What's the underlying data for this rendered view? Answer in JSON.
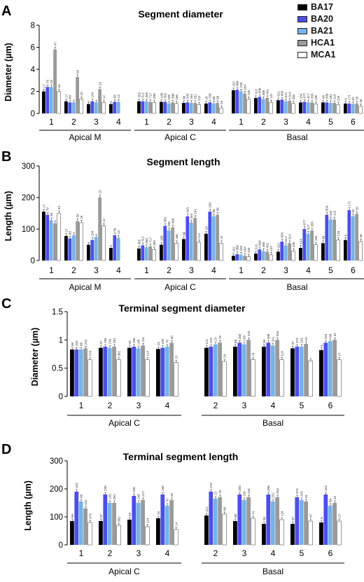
{
  "legend": {
    "series": [
      {
        "name": "BA17",
        "color": "#000000"
      },
      {
        "name": "BA20",
        "color": "#4d4dea"
      },
      {
        "name": "BA21",
        "color": "#76b2ea"
      },
      {
        "name": "HCA1",
        "color": "#9a9a9a"
      },
      {
        "name": "MCA1",
        "color": "#ffffff"
      }
    ]
  },
  "chart_data": [
    {
      "type": "bar",
      "panel_letter": "A",
      "title": "Segment diameter",
      "ylabel": "Diameter (µm)",
      "ylim": [
        0,
        8
      ],
      "yticks": [
        0,
        2,
        4,
        6,
        8
      ],
      "series_names": [
        "BA17",
        "BA20",
        "BA21",
        "HCA1",
        "MCA1"
      ],
      "groups": [
        {
          "label": "Apical M",
          "categories": [
            {
              "x": "1",
              "values": [
                2.0,
                2.4,
                2.4,
                5.8,
                2.0
              ],
              "n": [
                "17",
                "79",
                "33",
                "47",
                "44"
              ]
            },
            {
              "x": "2",
              "values": [
                1.1,
                1.0,
                1.0,
                3.3,
                1.3
              ],
              "n": [
                "27",
                "89",
                "",
                "50",
                "23"
              ]
            },
            {
              "x": "3",
              "values": [
                0.85,
                1.1,
                1.0,
                2.2,
                1.0
              ],
              "n": [
                "",
                "104",
                "",
                "23",
                "12"
              ]
            },
            {
              "x": "4",
              "values": [
                0.85,
                1.05,
                1.05,
                null,
                null
              ],
              "n": [
                "",
                "58",
                "13",
                "",
                ""
              ]
            }
          ]
        },
        {
          "label": "Apical C",
          "categories": [
            {
              "x": "1",
              "values": [
                1.1,
                1.1,
                1.1,
                1.05,
                1.0
              ],
              "n": [
                "355",
                "512",
                "300",
                "717",
                "399"
              ]
            },
            {
              "x": "2",
              "values": [
                1.05,
                1.05,
                0.9,
                1.0,
                0.9
              ],
              "n": [
                "188",
                "362",
                "208",
                "386",
                "186"
              ]
            },
            {
              "x": "3",
              "values": [
                0.95,
                1.0,
                0.95,
                0.95,
                0.8
              ],
              "n": [
                "86",
                "343",
                "204",
                "281",
                "122"
              ]
            },
            {
              "x": "4",
              "values": [
                0.9,
                1.0,
                0.9,
                0.95,
                0.5
              ],
              "n": [
                "29",
                "158",
                "85",
                "58",
                "15"
              ]
            }
          ]
        },
        {
          "label": "Basal",
          "categories": [
            {
              "x": "1",
              "values": [
                2.1,
                2.15,
                2.0,
                1.8,
                1.3
              ],
              "n": [
                "152",
                "366",
                "230",
                "284",
                "100"
              ]
            },
            {
              "x": "2",
              "values": [
                1.4,
                1.5,
                1.3,
                1.4,
                1.0
              ],
              "n": [
                "313",
                "606",
                "366",
                "431",
                "137"
              ]
            },
            {
              "x": "3",
              "values": [
                1.2,
                1.25,
                1.1,
                1.15,
                0.9
              ],
              "n": [
                "322",
                "909",
                "612",
                "913",
                "208"
              ]
            },
            {
              "x": "4",
              "values": [
                1.0,
                1.05,
                1.0,
                1.0,
                0.85
              ],
              "n": [
                "154",
                "677",
                "417",
                "355",
                "195"
              ]
            },
            {
              "x": "5",
              "values": [
                1.0,
                1.0,
                0.95,
                0.95,
                0.8
              ],
              "n": [
                "48",
                "509",
                "292",
                "119",
                "126"
              ]
            },
            {
              "x": "6",
              "values": [
                0.9,
                0.9,
                0.85,
                0.9,
                0.65
              ],
              "n": [
                "6",
                "171",
                "82",
                "35",
                "49"
              ]
            }
          ]
        }
      ]
    },
    {
      "type": "bar",
      "panel_letter": "B",
      "title": "Segment length",
      "ylabel": "Length (µm)",
      "ylim": [
        0,
        300
      ],
      "yticks": [
        0,
        100,
        200,
        300
      ],
      "series_names": [
        "BA17",
        "BA20",
        "BA21",
        "HCA1",
        "MCA1"
      ],
      "groups": [
        {
          "label": "Apical M",
          "categories": [
            {
              "x": "1",
              "values": [
                155,
                145,
                128,
                118,
                150
              ],
              "n": [
                "17",
                "79",
                "33",
                "",
                "44"
              ]
            },
            {
              "x": "2",
              "values": [
                78,
                70,
                80,
                125,
                120
              ],
              "n": [
                "27",
                "89",
                "",
                "50",
                "25"
              ]
            },
            {
              "x": "3",
              "values": [
                50,
                65,
                75,
                200,
                110
              ],
              "n": [
                "",
                "104",
                "",
                "23",
                "12"
              ]
            },
            {
              "x": "4",
              "values": [
                40,
                80,
                72,
                null,
                null
              ],
              "n": [
                "",
                "58",
                "13",
                "",
                ""
              ]
            }
          ]
        },
        {
          "label": "Apical C",
          "categories": [
            {
              "x": "1",
              "values": [
                38,
                48,
                42,
                45,
                35
              ],
              "n": [
                "355",
                "512",
                "300",
                "717",
                "399"
              ]
            },
            {
              "x": "2",
              "values": [
                50,
                110,
                95,
                105,
                55
              ],
              "n": [
                "188",
                "362",
                "208",
                "386",
                "186"
              ]
            },
            {
              "x": "3",
              "values": [
                68,
                140,
                120,
                135,
                58
              ],
              "n": [
                "86",
                "343",
                "204",
                "281",
                "122"
              ]
            },
            {
              "x": "4",
              "values": [
                85,
                155,
                140,
                145,
                55
              ],
              "n": [
                "29",
                "158",
                "85",
                "58",
                "15"
              ]
            }
          ]
        },
        {
          "label": "Basal",
          "categories": [
            {
              "x": "1",
              "values": [
                15,
                20,
                18,
                15,
                12
              ],
              "n": [
                "152",
                "366",
                "230",
                "284",
                "100"
              ]
            },
            {
              "x": "2",
              "values": [
                22,
                35,
                30,
                28,
                18
              ],
              "n": [
                "313",
                "606",
                "366",
                "431",
                "137"
              ]
            },
            {
              "x": "3",
              "values": [
                28,
                60,
                48,
                55,
                30
              ],
              "n": [
                "322",
                "909",
                "612",
                "913",
                "208"
              ]
            },
            {
              "x": "4",
              "values": [
                40,
                100,
                85,
                95,
                50
              ],
              "n": [
                "154",
                "677",
                "417",
                "355",
                "195"
              ]
            },
            {
              "x": "5",
              "values": [
                55,
                145,
                130,
                130,
                65
              ],
              "n": [
                "48",
                "509",
                "292",
                "119",
                "126"
              ]
            },
            {
              "x": "6",
              "values": [
                65,
                160,
                140,
                148,
                60
              ],
              "n": [
                "6",
                "171",
                "82",
                "35",
                "49"
              ]
            }
          ]
        }
      ]
    },
    {
      "type": "bar",
      "panel_letter": "C",
      "title": "Terminal segment diameter",
      "ylabel": "Diameter (µm)",
      "ylim": [
        0,
        1.5
      ],
      "yticks": [
        0,
        0.5,
        1.0,
        1.5
      ],
      "series_names": [
        "BA17",
        "BA20",
        "BA21",
        "HCA1",
        "MCA1"
      ],
      "groups": [
        {
          "label": "Apical C",
          "categories": [
            {
              "x": "1",
              "values": [
                0.83,
                0.83,
                0.83,
                0.85,
                0.65
              ],
              "n": [
                "69",
                "104",
                "68",
                "232",
                "379"
              ]
            },
            {
              "x": "2",
              "values": [
                0.86,
                0.88,
                0.86,
                0.88,
                0.65
              ],
              "n": [
                "97",
                "295",
                "139",
                "352",
                "382"
              ]
            },
            {
              "x": "3",
              "values": [
                0.86,
                0.88,
                0.85,
                0.9,
                0.65
              ],
              "n": [
                "09",
                "256",
                "148",
                "231",
                "114"
              ]
            },
            {
              "x": "4",
              "values": [
                0.84,
                0.86,
                0.88,
                0.95,
                0.6
              ],
              "n": [
                "25",
                "190",
                "70",
                "50",
                "15"
              ]
            }
          ]
        },
        {
          "label": "Basal",
          "categories": [
            {
              "x": "2",
              "values": [
                0.86,
                0.88,
                0.92,
                0.95,
                0.62
              ],
              "n": [
                "121",
                "229",
                "23",
                "79",
                "28"
              ]
            },
            {
              "x": "3",
              "values": [
                0.88,
                0.95,
                0.92,
                1.0,
                0.65
              ],
              "n": [
                "68",
                "265",
                "139",
                "244",
                "74"
              ]
            },
            {
              "x": "4",
              "values": [
                0.88,
                0.95,
                0.9,
                1.0,
                0.65
              ],
              "n": [
                "95",
                "498",
                "251",
                "253",
                "118"
              ]
            },
            {
              "x": "5",
              "values": [
                0.85,
                0.88,
                0.88,
                0.93,
                0.63
              ],
              "n": [
                "37",
                "374",
                "203",
                "91",
                ""
              ]
            },
            {
              "x": "6",
              "values": [
                0.82,
                0.95,
                0.98,
                1.0,
                0.65
              ],
              "n": [
                "6",
                "153",
                "68",
                "32",
                "27"
              ]
            }
          ]
        }
      ]
    },
    {
      "type": "bar",
      "panel_letter": "D",
      "title": "Terminal segment length",
      "ylabel": "Length (µm)",
      "ylim": [
        0,
        300
      ],
      "yticks": [
        0,
        100,
        200,
        300
      ],
      "series_names": [
        "BA17",
        "BA20",
        "BA21",
        "HCA1",
        "MCA1"
      ],
      "groups": [
        {
          "label": "Apical C",
          "categories": [
            {
              "x": "1",
              "values": [
                85,
                190,
                155,
                130,
                80
              ],
              "n": [
                "69",
                "104",
                "68",
                "232",
                "379"
              ]
            },
            {
              "x": "2",
              "values": [
                85,
                180,
                150,
                150,
                70
              ],
              "n": [
                "97",
                "295",
                "139",
                "352",
                "382"
              ]
            },
            {
              "x": "3",
              "values": [
                90,
                175,
                150,
                160,
                65
              ],
              "n": [
                "09",
                "256",
                "148",
                "227",
                "114"
              ]
            },
            {
              "x": "4",
              "values": [
                95,
                180,
                140,
                160,
                55
              ],
              "n": [
                "25",
                "190",
                "70",
                "50",
                "14"
              ]
            }
          ]
        },
        {
          "label": "Basal",
          "categories": [
            {
              "x": "2",
              "values": [
                105,
                190,
                165,
                170,
                110
              ],
              "n": [
                "121",
                "229",
                "23",
                "79",
                "88"
              ]
            },
            {
              "x": "3",
              "values": [
                85,
                180,
                160,
                170,
                95
              ],
              "n": [
                "88",
                "265",
                "139",
                "244",
                "74"
              ]
            },
            {
              "x": "4",
              "values": [
                75,
                180,
                155,
                170,
                90
              ],
              "n": [
                "35",
                "498",
                "251",
                "253",
                "116"
              ]
            },
            {
              "x": "5",
              "values": [
                75,
                170,
                160,
                155,
                85
              ],
              "n": [
                "37",
                "374",
                "203",
                "91",
                "97"
              ]
            },
            {
              "x": "6",
              "values": [
                80,
                180,
                140,
                150,
                85
              ],
              "n": [
                "6",
                "153",
                "68",
                "32",
                "27"
              ]
            }
          ]
        }
      ]
    }
  ]
}
